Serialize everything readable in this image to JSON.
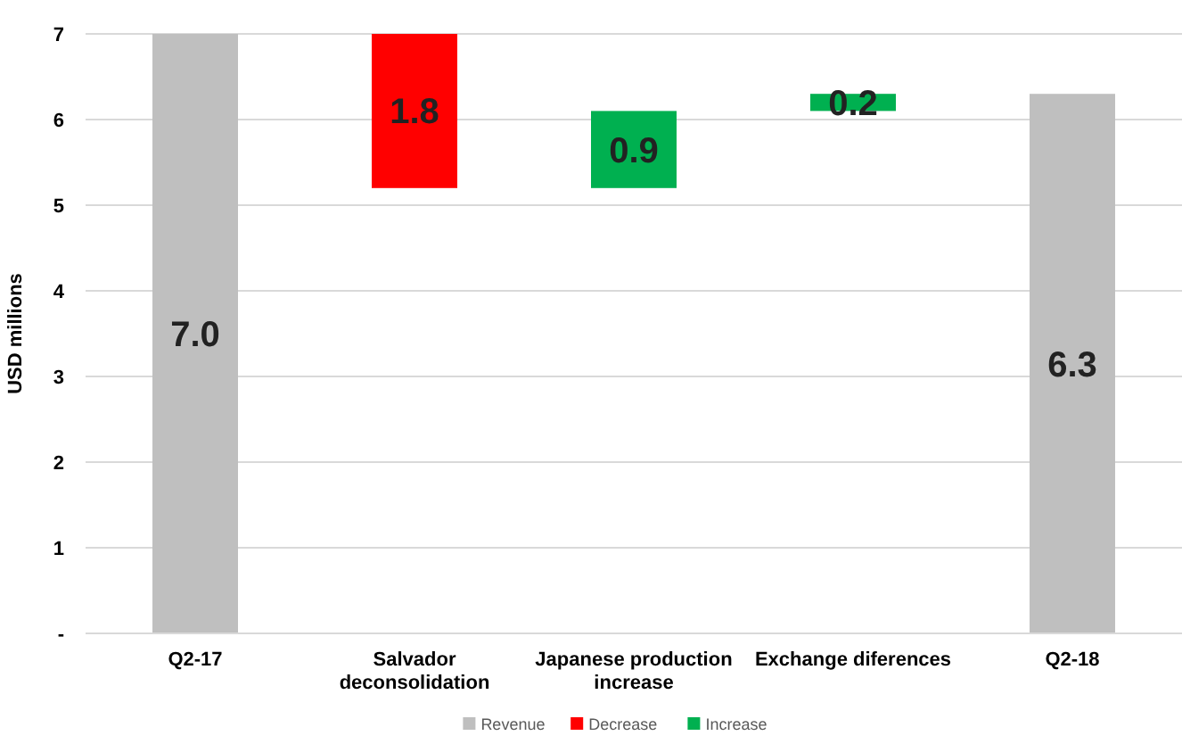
{
  "chart_data": {
    "type": "bar",
    "ylabel": "USD millions",
    "categories": [
      "Q2-17",
      "Salvador deconsolidation",
      "Japanese production increase",
      "Exchange diferences",
      "Q2-18"
    ],
    "series": [
      {
        "name": "Revenue",
        "color": "#bfbfbf",
        "values": [
          7.0,
          null,
          null,
          null,
          6.3
        ],
        "base": [
          0,
          null,
          null,
          null,
          0
        ],
        "value_labels": [
          "7.0",
          null,
          null,
          null,
          "6.3"
        ]
      },
      {
        "name": "Decrease",
        "color": "#ff0000",
        "values": [
          null,
          1.8,
          null,
          null,
          null
        ],
        "base": [
          null,
          5.2,
          null,
          null,
          null
        ],
        "value_labels": [
          null,
          "1.8",
          null,
          null,
          null
        ]
      },
      {
        "name": "Increase",
        "color": "#00b050",
        "values": [
          null,
          null,
          0.9,
          0.2,
          null
        ],
        "base": [
          null,
          null,
          5.2,
          6.1,
          null
        ],
        "value_labels": [
          null,
          null,
          "0.9",
          "0.2",
          null
        ]
      }
    ],
    "ylim": [
      0,
      7
    ],
    "yticks": [
      {
        "value": 0,
        "label": "-"
      },
      1,
      2,
      3,
      4,
      5,
      6,
      7
    ],
    "grid": "y",
    "legend": "bottom"
  }
}
